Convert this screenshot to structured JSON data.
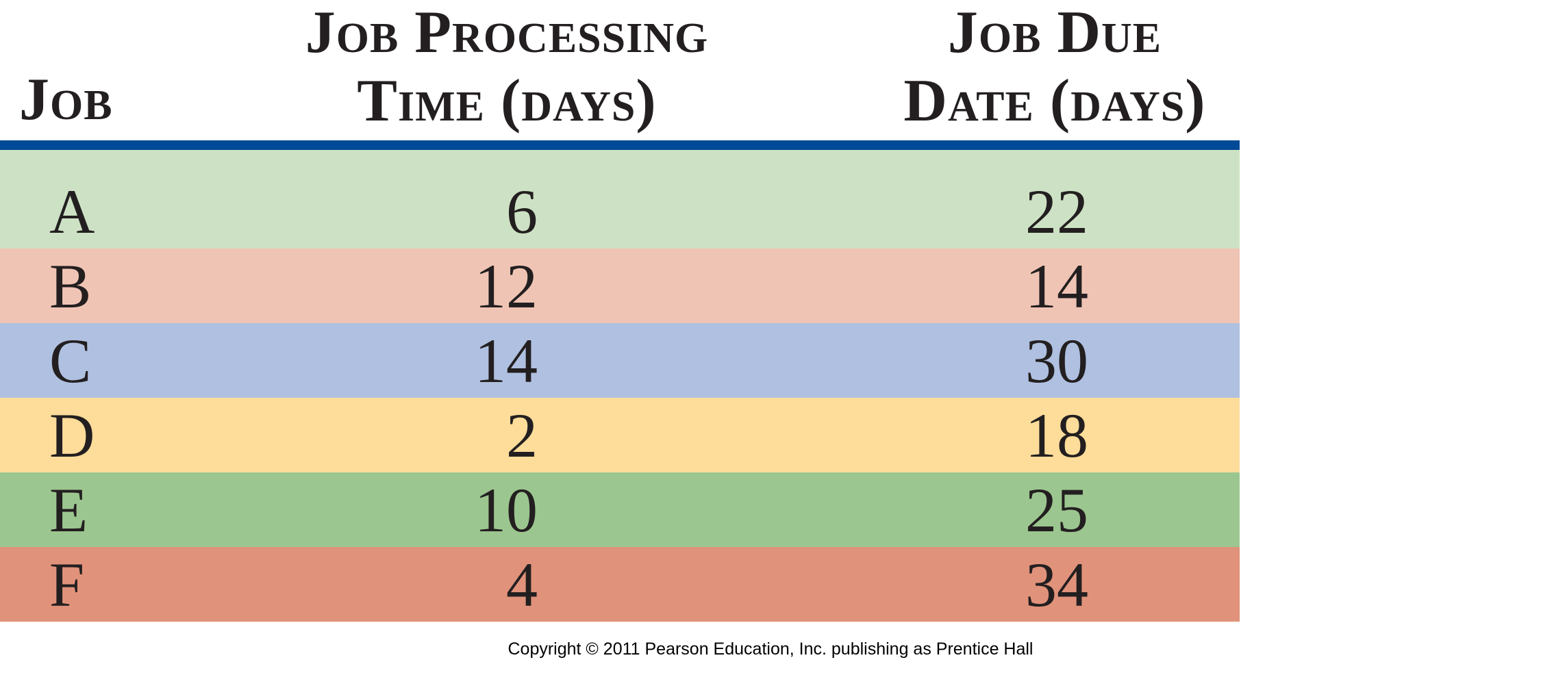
{
  "table": {
    "headers": {
      "job": [
        "Job"
      ],
      "processing_time": [
        "Job Processing",
        "Time (days)"
      ],
      "due_date": [
        "Job Due",
        "Date (days)"
      ]
    },
    "rule_color": "#004a97",
    "rows": [
      {
        "job": "A",
        "processing_time": "6",
        "due_date": "22",
        "color": "#cde2c4"
      },
      {
        "job": "B",
        "processing_time": "12",
        "due_date": "14",
        "color": "#f0c4b4"
      },
      {
        "job": "C",
        "processing_time": "14",
        "due_date": "30",
        "color": "#afc0e0"
      },
      {
        "job": "D",
        "processing_time": "2",
        "due_date": "18",
        "color": "#fedc9a"
      },
      {
        "job": "E",
        "processing_time": "10",
        "due_date": "25",
        "color": "#9cc68f"
      },
      {
        "job": "F",
        "processing_time": "4",
        "due_date": "34",
        "color": "#e0927a"
      }
    ]
  },
  "footer": {
    "copyright": "Copyright © 2011 Pearson Education, Inc. publishing as Prentice Hall"
  }
}
